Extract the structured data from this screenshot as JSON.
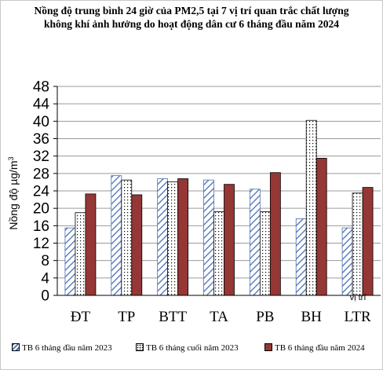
{
  "chart_data": {
    "type": "bar",
    "title": "Nồng độ trung bình 24 giờ của PM2,5 tại 7 vị trí quan trắc chất lượng không khí ảnh hưởng do hoạt động dân cư 6 tháng đầu năm 2024",
    "title_lines": [
      "Nồng độ trung bình 24 giờ của PM2,5 tại 7 vị trí quan trắc chất lượng",
      "không khí ảnh hưởng do hoạt động dân cư 6 tháng đầu năm 2024"
    ],
    "ylabel": "Nồng độ µg/m",
    "ylabel_sup": "3",
    "xlabel": "vị trí",
    "ylim": [
      0,
      48
    ],
    "yticks": [
      0,
      4,
      8,
      12,
      16,
      20,
      24,
      28,
      32,
      36,
      40,
      44,
      48
    ],
    "grid": true,
    "legend_position": "bottom",
    "categories": [
      "ĐT",
      "TP",
      "BTT",
      "TA",
      "PB",
      "BH",
      "LTR"
    ],
    "series": [
      {
        "name": "TB 6 tháng đầu năm 2023",
        "pattern": "hatch",
        "color": "#4a6fb5",
        "values": [
          15.5,
          27.5,
          26.8,
          26.5,
          24.4,
          17.6,
          15.5
        ]
      },
      {
        "name": "TB 6 tháng cuối năm 2023",
        "pattern": "dots",
        "color": "#000000",
        "values": [
          19.0,
          26.5,
          26.1,
          19.2,
          19.2,
          40.2,
          23.5
        ]
      },
      {
        "name": "TB 6 tháng đầu năm 2024",
        "pattern": "solid",
        "color": "#953735",
        "values": [
          23.3,
          23.1,
          26.8,
          25.5,
          28.2,
          31.5,
          24.8
        ]
      }
    ]
  }
}
